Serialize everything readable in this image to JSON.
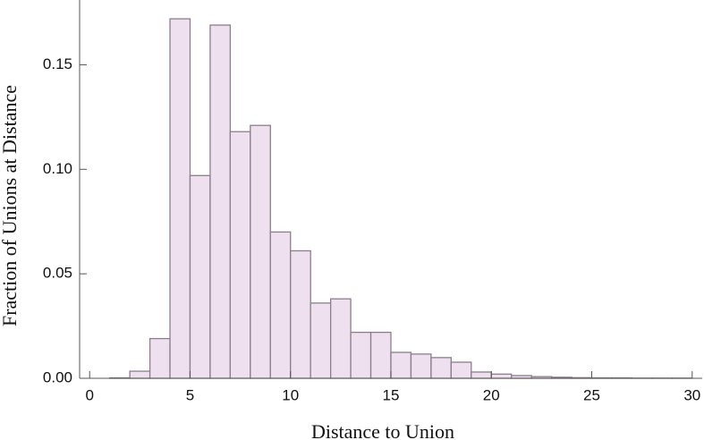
{
  "chart_data": {
    "type": "histogram",
    "xlabel": "Distance to Union",
    "ylabel": "Fraction of Unions at Distance",
    "bins": [
      1,
      2,
      3,
      4,
      5,
      6,
      7,
      8,
      9,
      10,
      11,
      12,
      13,
      14,
      15,
      16,
      17,
      18,
      19,
      20,
      21,
      22,
      23,
      24,
      25,
      26,
      27,
      28,
      29,
      30
    ],
    "values": [
      0.0002,
      0.0034,
      0.019,
      0.172,
      0.097,
      0.169,
      0.118,
      0.121,
      0.07,
      0.061,
      0.036,
      0.038,
      0.022,
      0.022,
      0.0124,
      0.0116,
      0.0099,
      0.0077,
      0.003,
      0.002,
      0.0013,
      0.0008,
      0.0005,
      0.0003,
      0.0002,
      0.0002,
      0.0001,
      0.0001,
      0.0001
    ],
    "color": "#efe0ef",
    "edgecolor": "#8a7f8a",
    "xlim": [
      -0.5,
      30.5
    ],
    "xticks": [
      0,
      5,
      10,
      15,
      20,
      25,
      30
    ],
    "ylim": [
      0,
      0.181
    ],
    "yticks": [
      {
        "value": 0,
        "label": "0.00"
      },
      0.05,
      {
        "value": 0.1,
        "label": "0.10"
      },
      0.15
    ]
  }
}
